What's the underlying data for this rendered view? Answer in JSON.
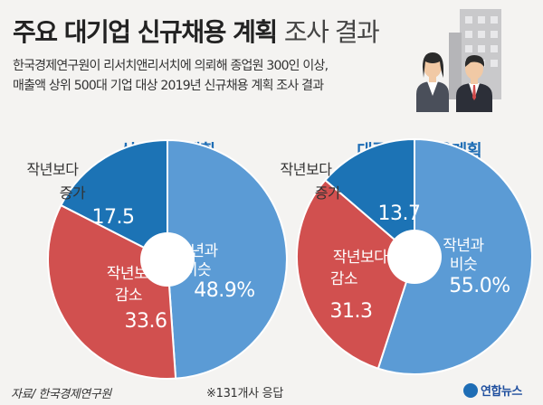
{
  "title": {
    "bold": "주요 대기업 신규채용 계획",
    "light": "조사 결과"
  },
  "subtitle": {
    "line1": "한국경제연구원이 리서치앤리서치에 의뢰해 종업원 300인 이상,",
    "line2": "매출액 상위 500대 기업 대상 2019년 신규채용 계획 조사 결과"
  },
  "footer": {
    "source": "자료/ 한국경제연구원",
    "note": "※131개사 응답",
    "logo": "연합뉴스"
  },
  "colors": {
    "blue_light": "#5b9bd5",
    "red": "#d1504f",
    "blue_dark": "#1c73b5",
    "title_blue": "#1e6db5"
  },
  "chart_data": [
    {
      "type": "pie",
      "title": "신규채용 계획",
      "slices": [
        {
          "label": "작년과 비슷",
          "value": 48.9,
          "display": "48.9%",
          "color": "#5b9bd5"
        },
        {
          "label": "작년보다 감소",
          "value": 33.6,
          "display": "33.6",
          "color": "#d1504f"
        },
        {
          "label": "작년보다 증가",
          "value": 17.5,
          "display": "17.5",
          "color": "#1c73b5"
        }
      ]
    },
    {
      "type": "pie",
      "title": "대졸신입 채용계획",
      "slices": [
        {
          "label": "작년과 비슷",
          "value": 55.0,
          "display": "55.0%",
          "color": "#5b9bd5"
        },
        {
          "label": "작년보다 감소",
          "value": 31.3,
          "display": "31.3",
          "color": "#d1504f"
        },
        {
          "label": "작년보다 증가",
          "value": 13.7,
          "display": "13.7",
          "color": "#1c73b5"
        }
      ]
    }
  ]
}
